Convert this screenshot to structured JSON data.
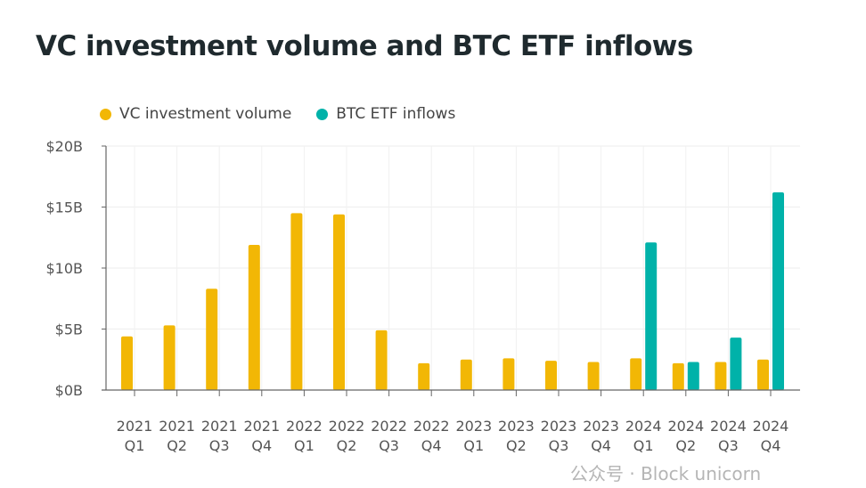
{
  "chart_data": {
    "type": "bar",
    "title": "VC investment volume and BTC ETF inflows",
    "categories": [
      [
        "2021",
        "Q1"
      ],
      [
        "2021",
        "Q2"
      ],
      [
        "2021",
        "Q3"
      ],
      [
        "2021",
        "Q4"
      ],
      [
        "2022",
        "Q1"
      ],
      [
        "2022",
        "Q2"
      ],
      [
        "2022",
        "Q3"
      ],
      [
        "2022",
        "Q4"
      ],
      [
        "2023",
        "Q1"
      ],
      [
        "2023",
        "Q2"
      ],
      [
        "2023",
        "Q3"
      ],
      [
        "2023",
        "Q4"
      ],
      [
        "2024",
        "Q1"
      ],
      [
        "2024",
        "Q2"
      ],
      [
        "2024",
        "Q3"
      ],
      [
        "2024",
        "Q4"
      ]
    ],
    "series": [
      {
        "name": "VC investment volume",
        "color": "#F2B705",
        "values": [
          4.4,
          5.3,
          8.3,
          11.9,
          14.5,
          14.4,
          4.9,
          2.2,
          2.5,
          2.6,
          2.4,
          2.3,
          2.6,
          2.2,
          2.3,
          2.5
        ]
      },
      {
        "name": "BTC ETF inflows",
        "color": "#00B2A9",
        "values": [
          null,
          null,
          null,
          null,
          null,
          null,
          null,
          null,
          null,
          null,
          null,
          null,
          12.1,
          2.3,
          4.3,
          16.2
        ]
      }
    ],
    "ylim": [
      0,
      20
    ],
    "yticks": [
      "$0B",
      "$5B",
      "$10B",
      "$15B",
      "$20B"
    ],
    "ytick_values": [
      0,
      5,
      10,
      15,
      20
    ],
    "grid": true,
    "legend": "top-left",
    "unit": "billions USD"
  },
  "watermark": "公众号 · Block unicorn"
}
